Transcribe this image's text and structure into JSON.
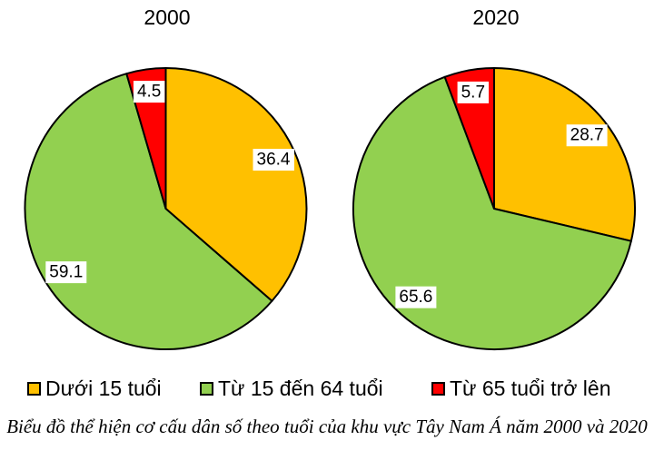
{
  "chart_data": [
    {
      "type": "pie",
      "title": "2000",
      "labels": [
        "Dưới 15 tuổi",
        "Từ 15 đến 64 tuổi",
        "Từ 65 tuổi trở lên"
      ],
      "values": [
        36.4,
        59.1,
        4.5
      ],
      "data_labels": [
        "36.4",
        "59.1",
        "4.5"
      ],
      "colors": [
        "#FFC000",
        "#92D050",
        "#FF0000"
      ],
      "start_angle_deg": 0,
      "direction": "clockwise",
      "label_radius_fraction": 0.84,
      "legend_position": "bottom"
    },
    {
      "type": "pie",
      "title": "2020",
      "labels": [
        "Dưới 15 tuổi",
        "Từ 15 đến 64 tuổi",
        "Từ 65 tuổi trở lên"
      ],
      "values": [
        28.7,
        65.6,
        5.7
      ],
      "data_labels": [
        "28.7",
        "65.6",
        "5.7"
      ],
      "colors": [
        "#FFC000",
        "#92D050",
        "#FF0000"
      ],
      "start_angle_deg": 0,
      "direction": "clockwise",
      "label_radius_fraction": 0.84,
      "legend_position": "bottom"
    }
  ],
  "legend": {
    "items": [
      {
        "label": "Dưới 15 tuổi",
        "color": "#FFC000"
      },
      {
        "label": "Từ 15 đến 64 tuổi",
        "color": "#92D050"
      },
      {
        "label": "Từ 65 tuổi trở lên",
        "color": "#FF0000"
      }
    ]
  },
  "caption": "Biểu đồ thể hiện cơ cấu dân số theo tuổi của khu vực Tây Nam Á năm 2000 và 2020",
  "style": {
    "outline_color": "#000000",
    "label_box_bg": "#FFFFFF",
    "text_color": "#000000"
  }
}
